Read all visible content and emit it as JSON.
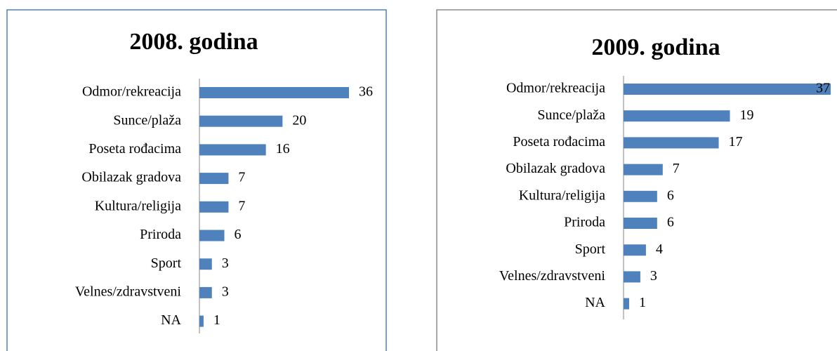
{
  "chart_data": [
    {
      "type": "bar",
      "orientation": "horizontal",
      "title": "2008. godina",
      "color": "#4f81bd",
      "categories": [
        "Odmor/rekreacija",
        "Sunce/plaža",
        "Poseta rođacima",
        "Obilazak gradova",
        "Kultura/religija",
        "Priroda",
        "Sport",
        "Velnes/zdravstveni",
        "NA"
      ],
      "values": [
        36,
        20,
        16,
        7,
        7,
        6,
        3,
        3,
        1
      ]
    },
    {
      "type": "bar",
      "orientation": "horizontal",
      "title": "2009. godina",
      "color": "#4f81bd",
      "categories": [
        "Odmor/rekreacija",
        "Sunce/plaža",
        "Poseta rođacima",
        "Obilazak gradova",
        "Kultura/religija",
        "Priroda",
        "Sport",
        "Velnes/zdravstveni",
        "NA"
      ],
      "values": [
        37,
        19,
        17,
        7,
        6,
        6,
        4,
        3,
        1
      ]
    }
  ]
}
